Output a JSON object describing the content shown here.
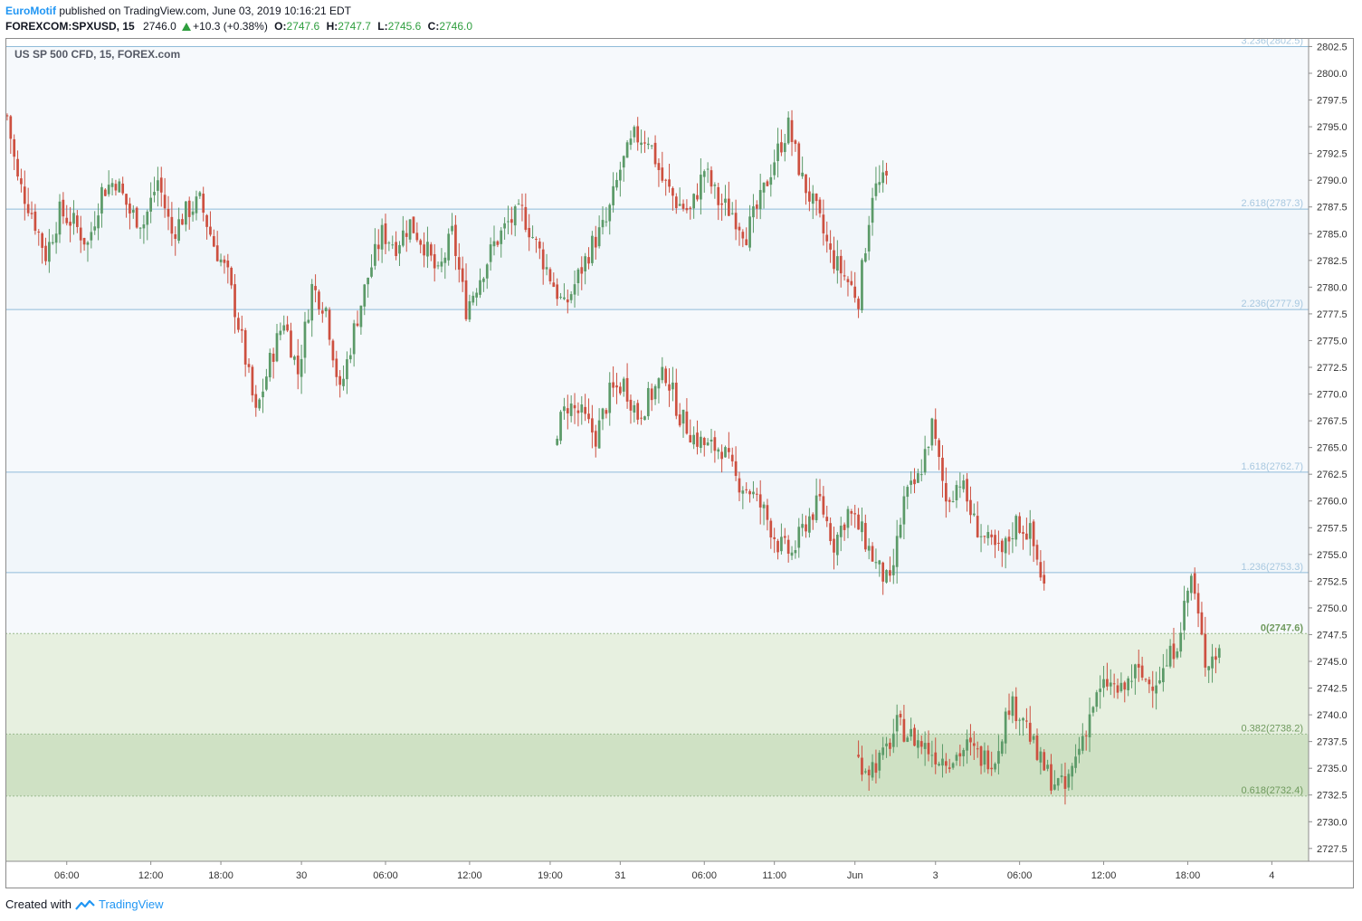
{
  "header": {
    "author": "EuroMotif",
    "published_text": " published on TradingView.com, June 03, 2019 10:16:21 EDT",
    "symbol": "FOREXCOM:SPXUSD, 15",
    "last": "2746.0",
    "change": "+10.3 (+0.38%)",
    "o_label": "O:",
    "o_value": "2747.6",
    "h_label": "H:",
    "h_value": "2747.7",
    "l_label": "L:",
    "l_value": "2745.6",
    "c_label": "C:",
    "c_value": "2746.0"
  },
  "legend": "US SP 500 CFD, 15, FOREX.com",
  "footer": {
    "created_with": "Created with",
    "brand": "TradingView"
  },
  "colors": {
    "up": "#5b9a68",
    "down": "#cd5040",
    "fib_line": "#90bcd9",
    "fib_label": "#a8c8e0",
    "green_zone": "#e7f0e0",
    "green_zone_dark": "#cfe1c4"
  },
  "chart_data": {
    "type": "candlestick",
    "y_axis": {
      "range": [
        2726.3,
        2803.3
      ],
      "ticks": [
        "2802.5",
        "2800.0",
        "2797.5",
        "2795.0",
        "2792.5",
        "2790.0",
        "2787.5",
        "2785.0",
        "2782.5",
        "2780.0",
        "2777.5",
        "2775.0",
        "2772.5",
        "2770.0",
        "2767.5",
        "2765.0",
        "2762.5",
        "2760.0",
        "2757.5",
        "2755.0",
        "2752.5",
        "2750.0",
        "2747.5",
        "2745.0",
        "2742.5",
        "2740.0",
        "2737.5",
        "2735.0",
        "2732.5",
        "2730.0",
        "2727.5"
      ]
    },
    "x_axis": {
      "ticks": [
        {
          "label": "06:00",
          "bar": 17
        },
        {
          "label": "12:00",
          "bar": 41
        },
        {
          "label": "18:00",
          "bar": 61
        },
        {
          "label": "30",
          "bar": 84
        },
        {
          "label": "06:00",
          "bar": 108
        },
        {
          "label": "12:00",
          "bar": 132
        },
        {
          "label": "19:00",
          "bar": 155
        },
        {
          "label": "31",
          "bar": 175
        },
        {
          "label": "06:00",
          "bar": 199
        },
        {
          "label": "11:00",
          "bar": 219
        },
        {
          "label": "Jun",
          "bar": 242
        },
        {
          "label": "3",
          "bar": 265
        },
        {
          "label": "06:00",
          "bar": 289
        },
        {
          "label": "12:00",
          "bar": 313
        },
        {
          "label": "18:00",
          "bar": 337
        },
        {
          "label": "4",
          "bar": 361
        }
      ]
    },
    "fib_levels": [
      {
        "ratio": "3.236",
        "value": 2802.5,
        "label": "3.236(2802.5)"
      },
      {
        "ratio": "2.618",
        "value": 2787.3,
        "label": "2.618(2787.3)"
      },
      {
        "ratio": "2.236",
        "value": 2777.9,
        "label": "2.236(2777.9)"
      },
      {
        "ratio": "1.618",
        "value": 2762.7,
        "label": "1.618(2762.7)"
      },
      {
        "ratio": "1.236",
        "value": 2753.3,
        "label": "1.236(2753.3)"
      },
      {
        "ratio": "0",
        "value": 2747.6,
        "label": "0(2747.6)"
      },
      {
        "ratio": "0.382",
        "value": 2738.2,
        "label": "0.382(2738.2)"
      },
      {
        "ratio": "0.618",
        "value": 2732.4,
        "label": "0.618(2732.4)"
      }
    ],
    "segments": [
      {
        "start_bar": 0,
        "points": [
          2798,
          2790,
          2787,
          2783,
          2787,
          2786,
          2784,
          2789,
          2790,
          2787,
          2786,
          2790,
          2785,
          2787,
          2788,
          2784,
          2781,
          2775,
          2768,
          2773,
          2777,
          2772,
          2780,
          2778,
          2770,
          2776,
          2781,
          2785,
          2784,
          2786,
          2784,
          2781,
          2785,
          2778,
          2781,
          2784,
          2786,
          2787,
          2784,
          2781,
          2778,
          2781,
          2784,
          2786,
          2791,
          2794,
          2794,
          2790,
          2788,
          2787,
          2791,
          2788,
          2787,
          2785,
          2788,
          2792,
          2795,
          2790,
          2787,
          2783,
          2781,
          2779,
          2789,
          2790
        ]
      },
      {
        "start_bar": 157,
        "points": [
          2766,
          2769,
          2768,
          2766,
          2770,
          2771,
          2768,
          2770,
          2772,
          2768,
          2766,
          2765,
          2765,
          2762,
          2761,
          2759,
          2756,
          2755,
          2758,
          2760,
          2756,
          2759,
          2757,
          2754,
          2752,
          2760,
          2762,
          2767,
          2760,
          2762,
          2758,
          2756,
          2755,
          2758,
          2757,
          2752
        ]
      },
      {
        "start_bar": 243,
        "points": [
          2736,
          2735,
          2736,
          2739,
          2738,
          2737,
          2736,
          2736,
          2737,
          2736,
          2736,
          2741,
          2740,
          2736,
          2734,
          2733,
          2737,
          2741,
          2743,
          2742,
          2744,
          2743,
          2744,
          2747,
          2753,
          2745,
          2746
        ]
      }
    ]
  }
}
